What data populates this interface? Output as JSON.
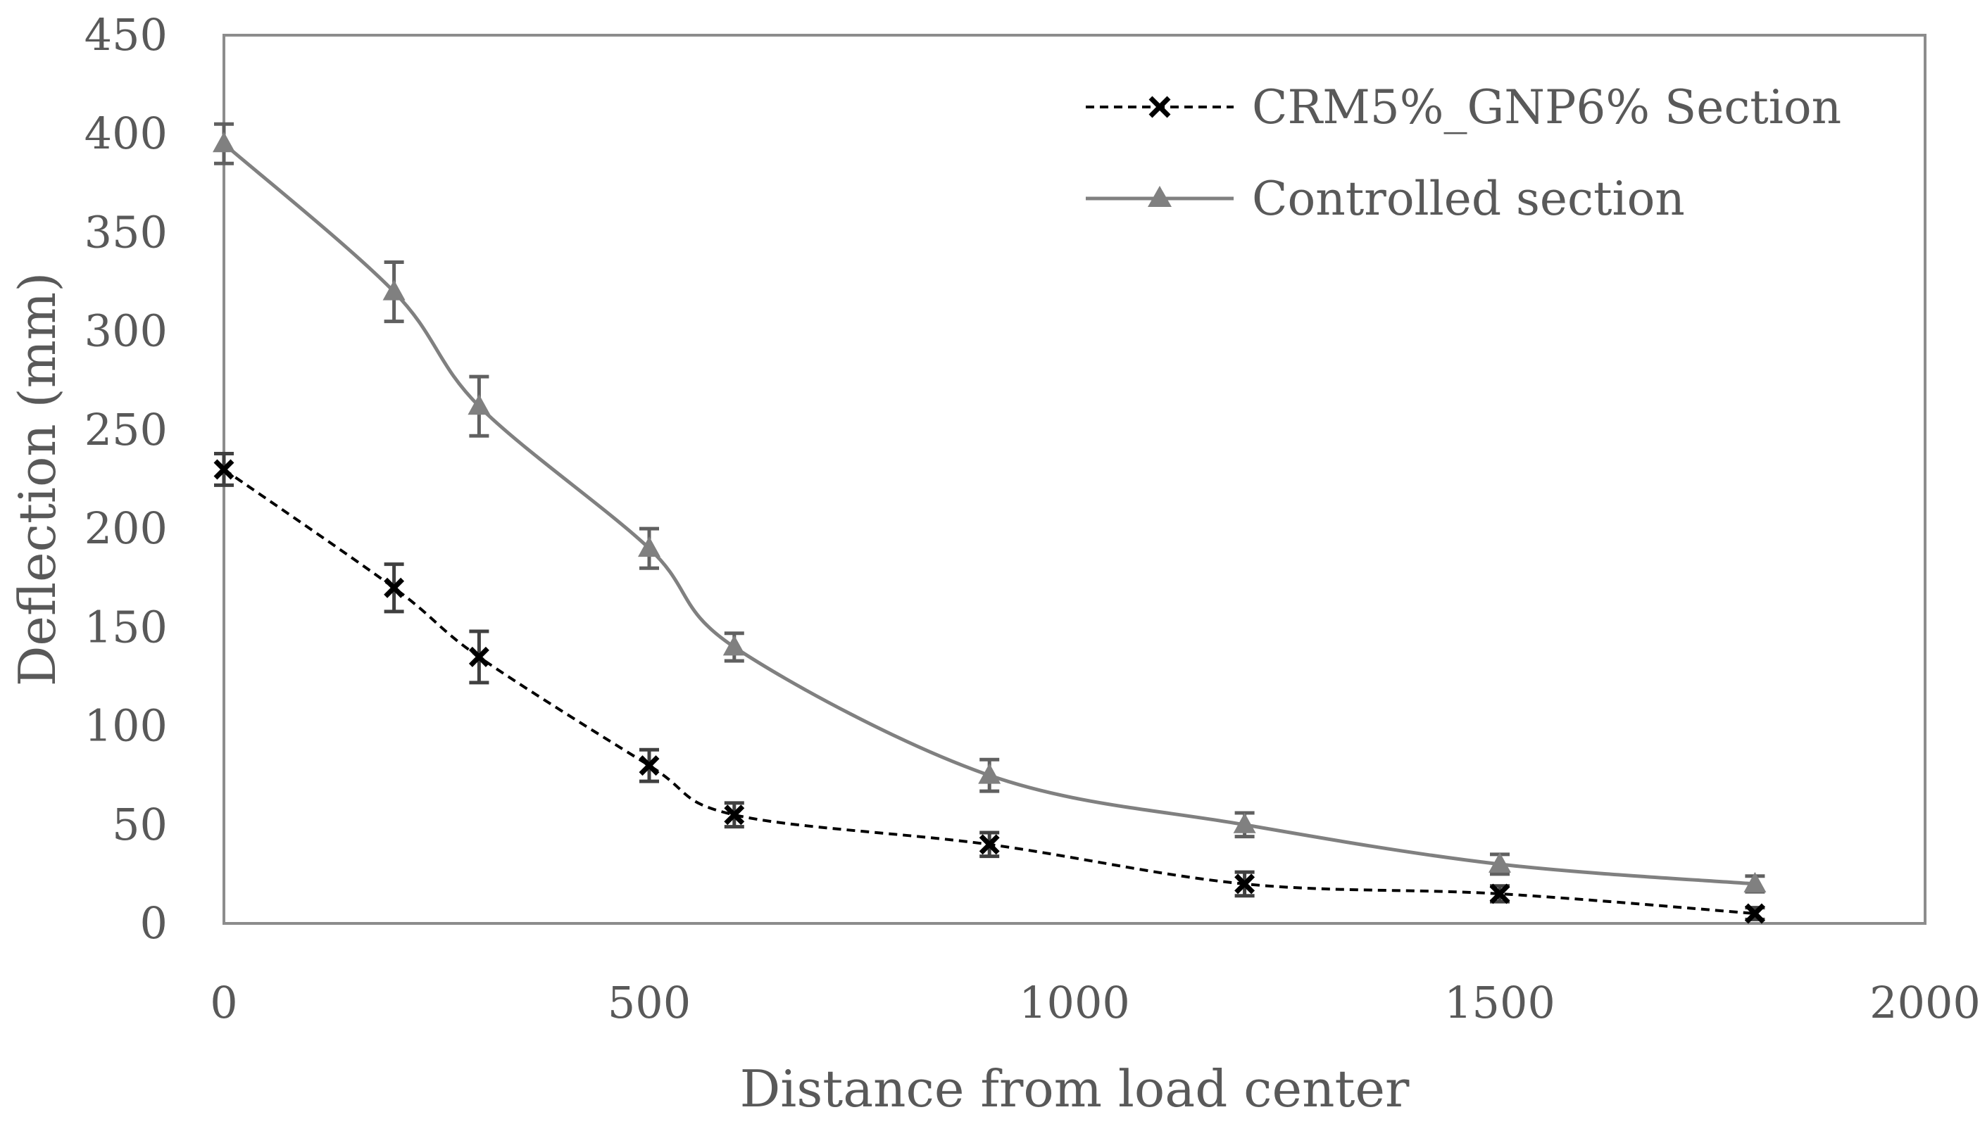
{
  "chart_data": {
    "type": "line",
    "title": "",
    "xlabel": "Distance from load center",
    "ylabel": "Deflection (mm)",
    "xlim": [
      0,
      2000
    ],
    "ylim": [
      0,
      450
    ],
    "xticks": [
      0,
      500,
      1000,
      1500,
      2000
    ],
    "yticks": [
      0,
      50,
      100,
      150,
      200,
      250,
      300,
      350,
      400,
      450
    ],
    "grid": false,
    "legend_position": "top-right",
    "x": [
      0,
      200,
      300,
      500,
      600,
      900,
      1200,
      1500,
      1800
    ],
    "series": [
      {
        "name": "CRM5%_GNP6% Section",
        "marker": "x",
        "line": "dashed",
        "color": "#000000",
        "values": [
          230,
          170,
          135,
          80,
          55,
          40,
          20,
          15,
          5
        ],
        "error": [
          8,
          12,
          13,
          8,
          6,
          6,
          6,
          4,
          3
        ]
      },
      {
        "name": "Controlled section",
        "marker": "triangle",
        "line": "solid",
        "color": "#808080",
        "values": [
          395,
          320,
          262,
          190,
          140,
          75,
          50,
          30,
          20
        ],
        "error": [
          10,
          15,
          15,
          10,
          7,
          8,
          6,
          5,
          4
        ]
      }
    ]
  }
}
